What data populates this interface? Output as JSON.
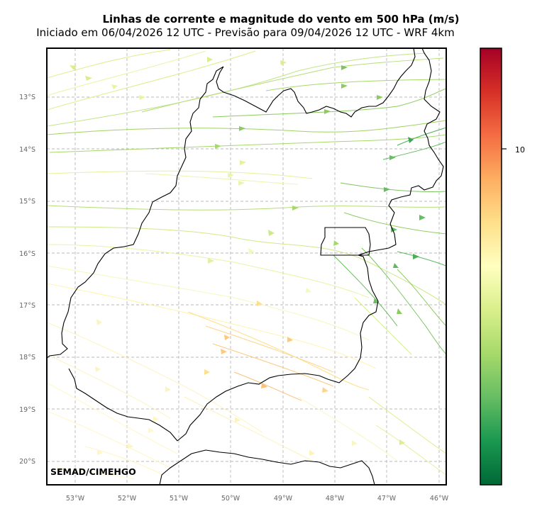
{
  "title": "Linhas de corrente e magnitude do vento em 500 hPa (m/s)",
  "subtitle": "Iniciado em 06/04/2026 12 UTC - Previsão para 09/04/2026 12 UTC - WRF 4km",
  "credit": "SEMAD/CIMEHGO",
  "map": {
    "lon_ticks": [
      "53°W",
      "52°W",
      "51°W",
      "50°W",
      "49°W",
      "48°W",
      "47°W",
      "46°W"
    ],
    "lat_ticks": [
      "13°S",
      "14°S",
      "15°S",
      "16°S",
      "17°S",
      "18°S",
      "19°S",
      "20°S"
    ],
    "grid": true,
    "region": "Goiás / Distrito Federal"
  },
  "colorbar": {
    "tick_labels": [
      "10"
    ],
    "colors": [
      "#006837",
      "#1a9850",
      "#66bd63",
      "#a6d96a",
      "#d9ef8b",
      "#ffffbf",
      "#fee08b",
      "#fdae61",
      "#f46d43",
      "#d73027",
      "#a50026"
    ]
  }
}
